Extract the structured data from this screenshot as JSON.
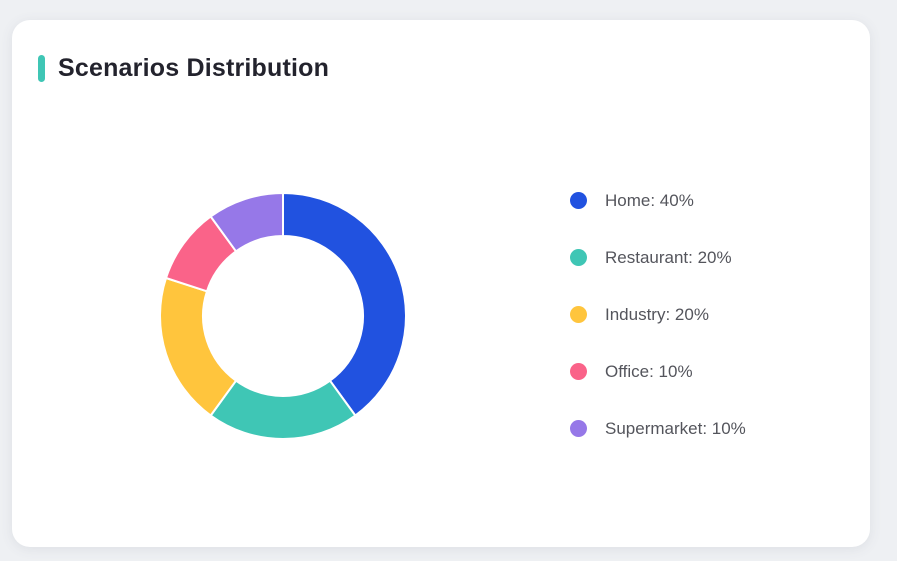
{
  "page": {
    "background_color": "#eef0f3"
  },
  "card": {
    "title": "Scenarios Distribution",
    "accent_color": "#3fc6b5",
    "background_color": "#ffffff"
  },
  "chart_data": {
    "type": "pie",
    "subtype": "donut",
    "title": "Scenarios Distribution",
    "categories": [
      "Home",
      "Restaurant",
      "Industry",
      "Office",
      "Supermarket"
    ],
    "values": [
      40,
      20,
      20,
      10,
      10
    ],
    "unit": "%",
    "colors": [
      "#2152e0",
      "#3fc6b5",
      "#ffc53d",
      "#fa6389",
      "#9678e8"
    ],
    "start_angle_deg": 0,
    "direction": "clockwise",
    "inner_radius_ratio": 0.65,
    "legend_position": "right",
    "legend": [
      {
        "label": "Home: 40%",
        "color": "#2152e0"
      },
      {
        "label": "Restaurant: 20%",
        "color": "#3fc6b5"
      },
      {
        "label": "Industry: 20%",
        "color": "#ffc53d"
      },
      {
        "label": "Office: 10%",
        "color": "#fa6389"
      },
      {
        "label": "Supermarket: 10%",
        "color": "#9678e8"
      }
    ]
  }
}
